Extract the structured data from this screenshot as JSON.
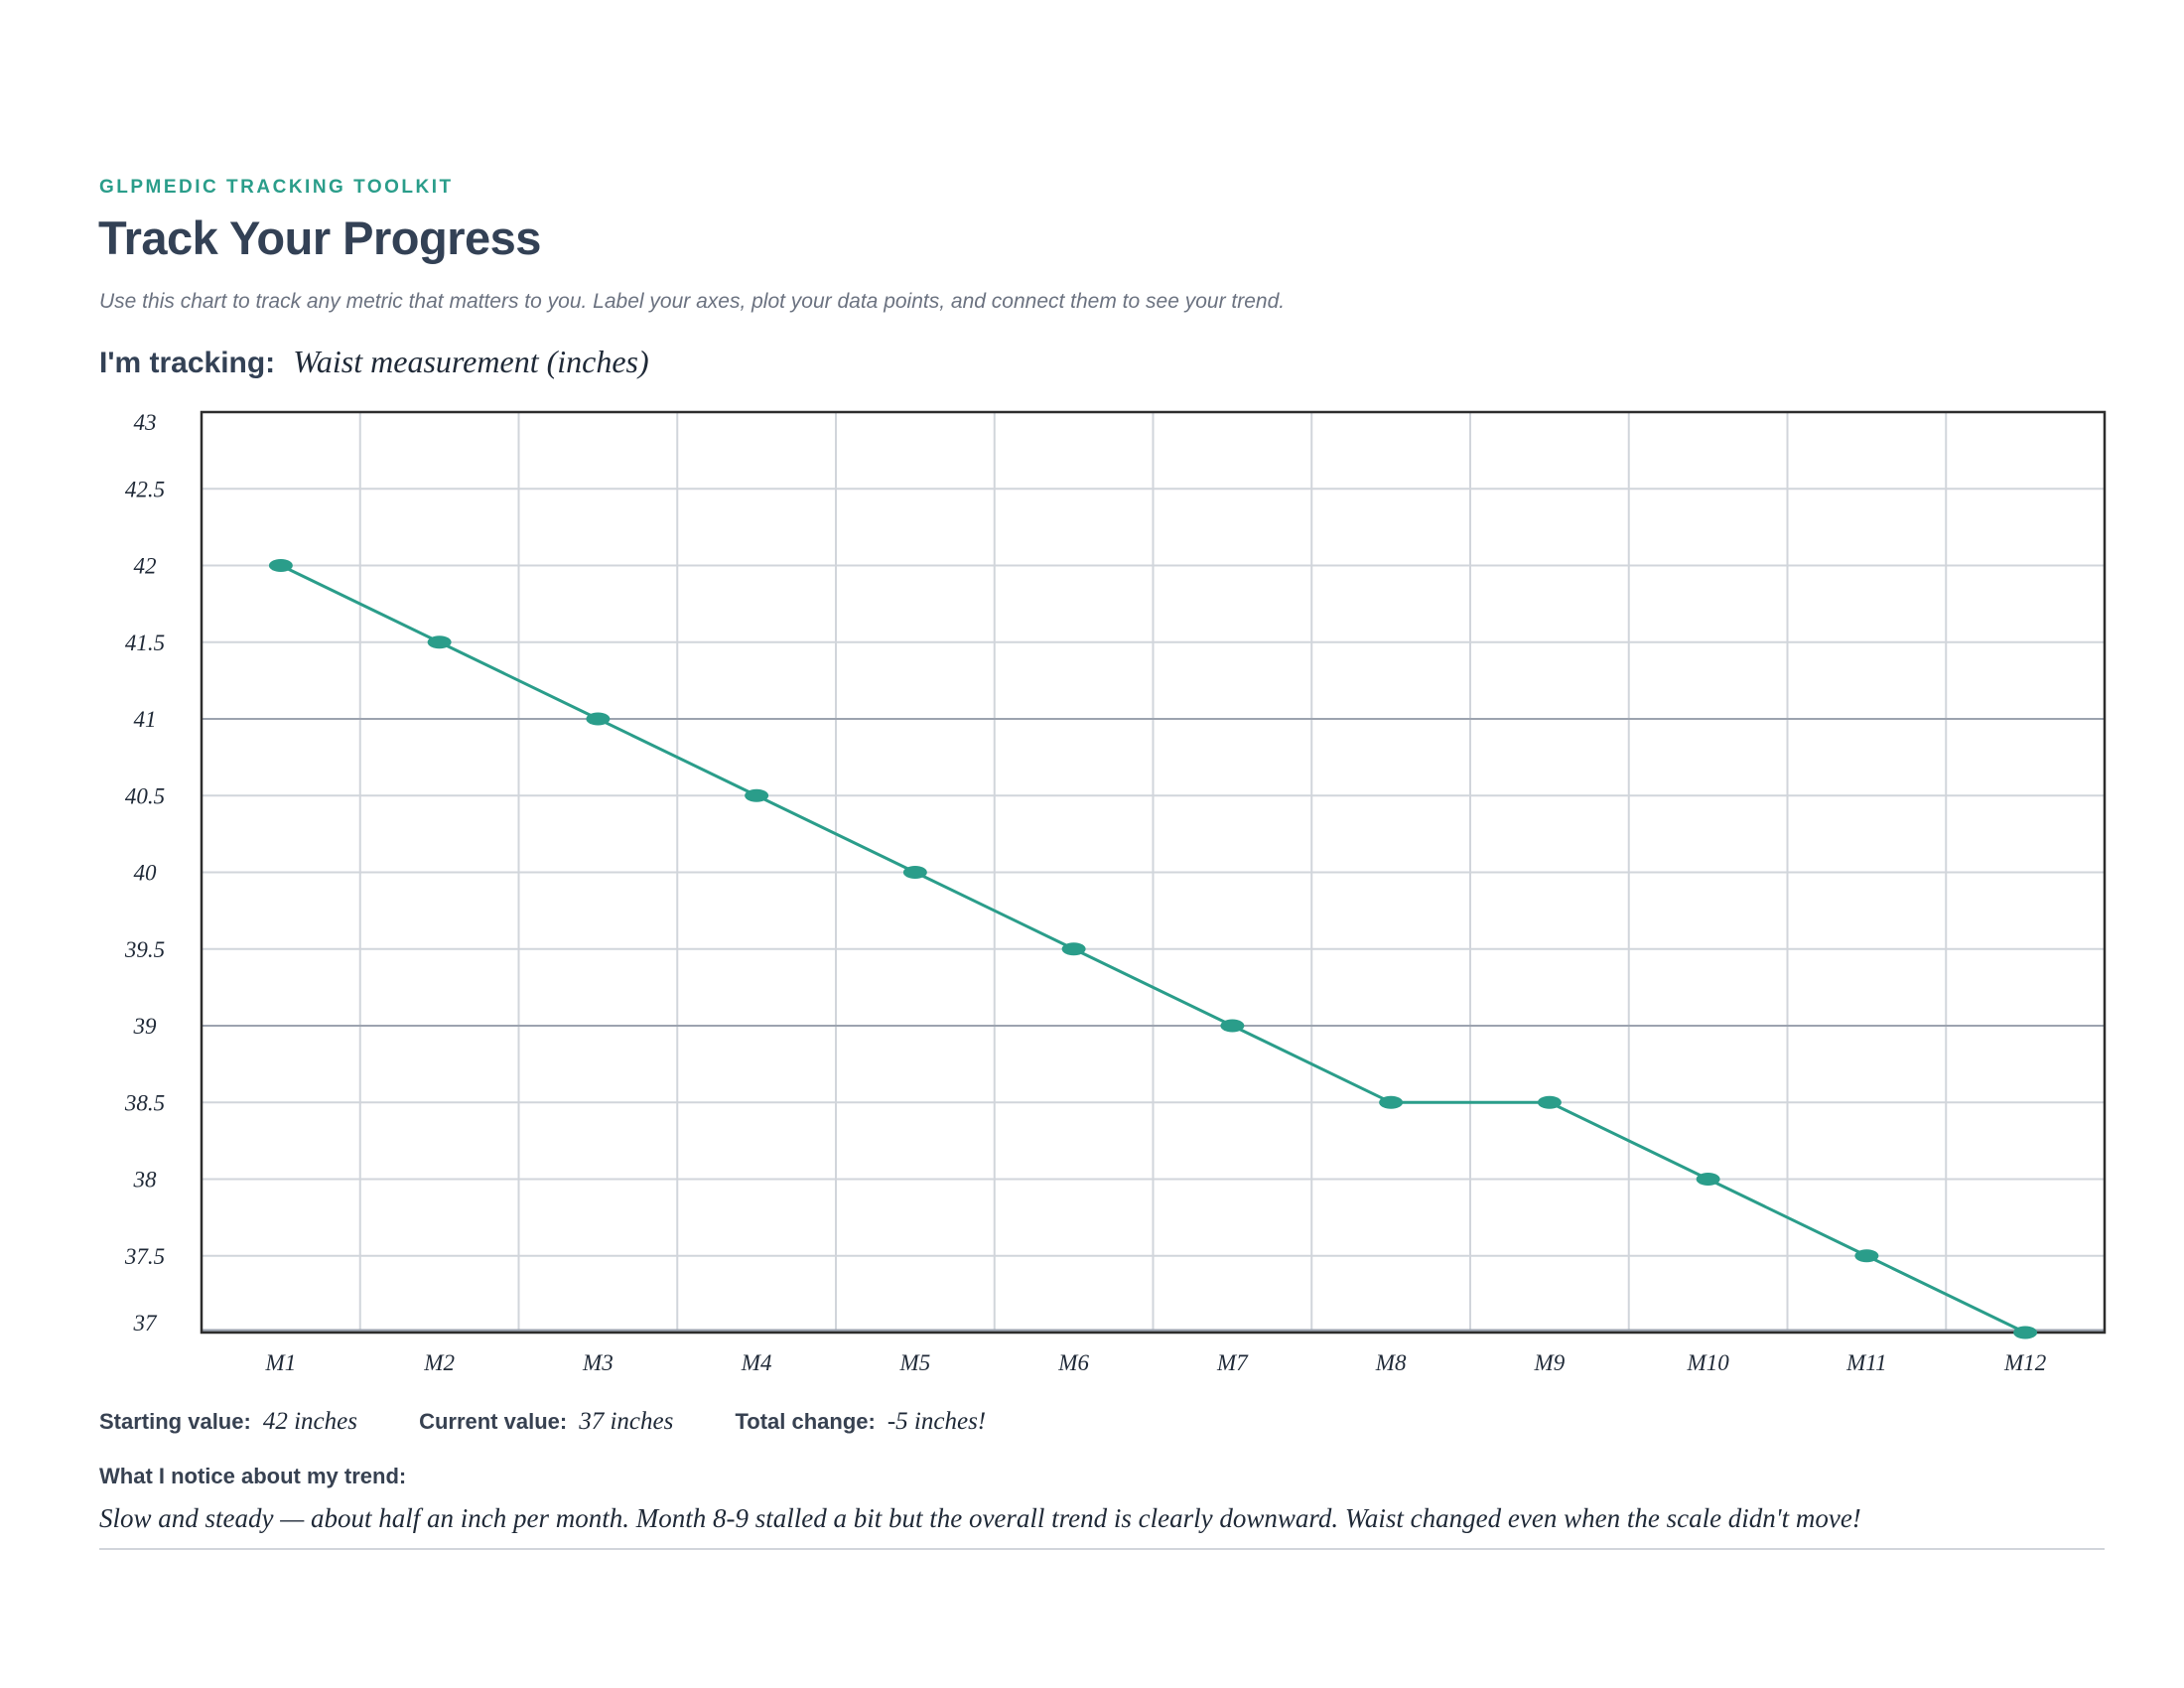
{
  "header": {
    "eyebrow": "GLPMEDIC TRACKING TOOLKIT",
    "title": "Track Your Progress",
    "subtitle": "Use this chart to track any metric that matters to you. Label your axes, plot your data points, and connect them to see your trend."
  },
  "tracking": {
    "label": "I'm tracking:",
    "value": "Waist measurement (inches)"
  },
  "chart_data": {
    "type": "line",
    "categories": [
      "M1",
      "M2",
      "M3",
      "M4",
      "M5",
      "M6",
      "M7",
      "M8",
      "M9",
      "M10",
      "M11",
      "M12"
    ],
    "values": [
      42,
      41.5,
      41,
      40.5,
      40,
      39.5,
      39,
      38.5,
      38.5,
      38,
      37.5,
      37
    ],
    "yticks": [
      "43",
      "42.5",
      "42",
      "41.5",
      "41",
      "40.5",
      "40",
      "39.5",
      "39",
      "38.5",
      "38",
      "37.5",
      "37"
    ],
    "ylim": [
      37,
      43
    ],
    "grid": true,
    "markers": "ellipse",
    "color": "#2a9d8a"
  },
  "summary": {
    "starting_label": "Starting value:",
    "starting_value": "42 inches",
    "current_label": "Current value:",
    "current_value": "37 inches",
    "change_label": "Total change:",
    "change_value": "-5 inches!"
  },
  "notice": {
    "label": "What I notice about my trend:",
    "text": "Slow and steady — about half an inch per month. Month 8-9 stalled a bit but the overall trend is clearly downward. Waist changed even when the scale didn't move!"
  }
}
